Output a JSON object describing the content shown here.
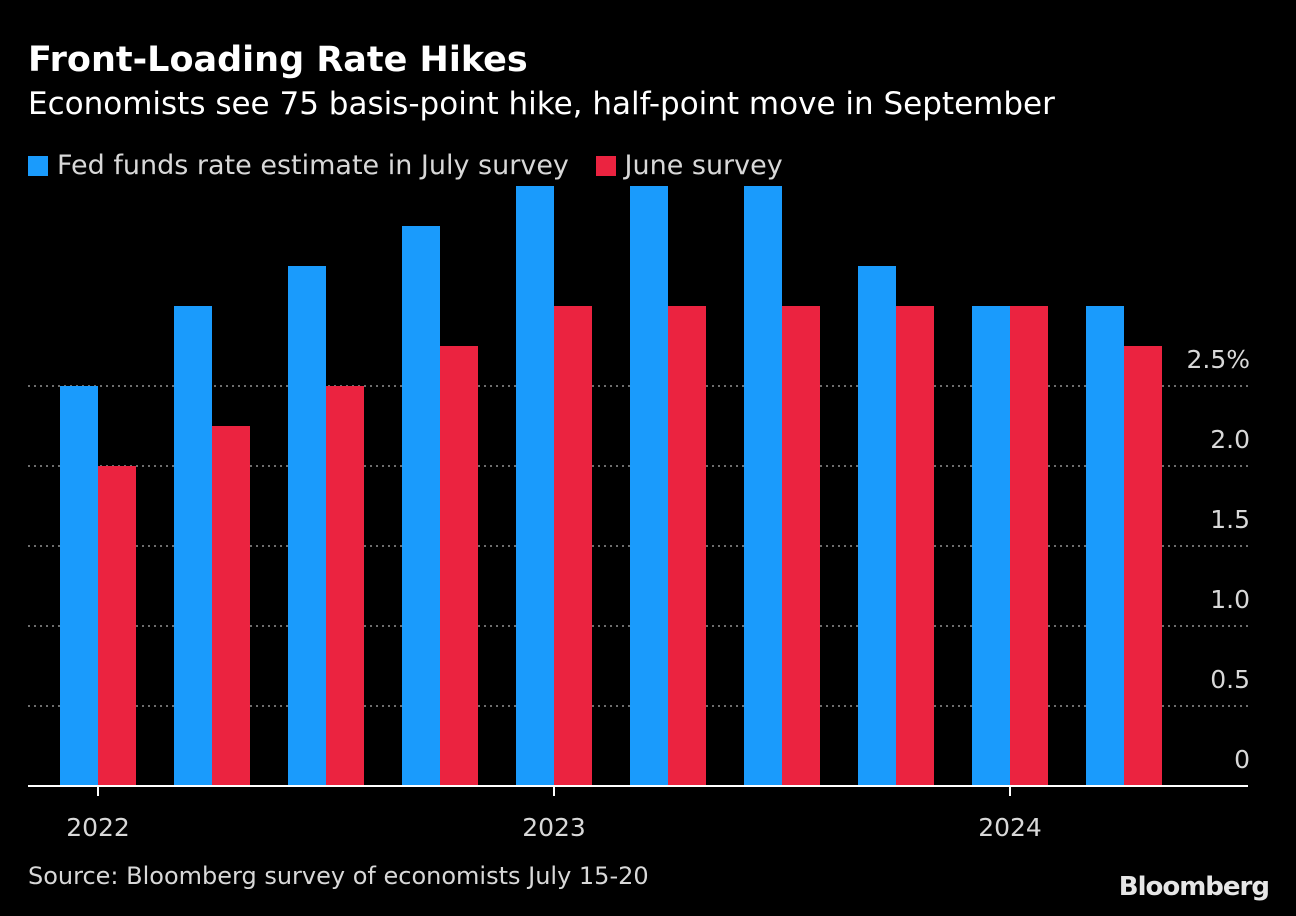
{
  "chart_data": {
    "type": "bar",
    "title": "Front-Loading Rate Hikes",
    "subtitle": "Economists see 75 basis-point hike, half-point move in September",
    "series": [
      {
        "name": "Fed funds rate estimate in July survey",
        "color": "#1a9bfc",
        "values": [
          2.5,
          3.0,
          3.25,
          3.5,
          3.75,
          3.75,
          3.75,
          3.25,
          3.0,
          3.0
        ]
      },
      {
        "name": "June survey",
        "color": "#eb2340",
        "values": [
          2.0,
          2.25,
          2.5,
          2.75,
          3.0,
          3.0,
          3.0,
          3.0,
          3.0,
          2.75
        ]
      }
    ],
    "x_tick_labels": [
      {
        "label": "2022",
        "index": 0.5
      },
      {
        "label": "2023",
        "index": 4.5
      },
      {
        "label": "2024",
        "index": 8.5
      }
    ],
    "y_ticks": [
      {
        "value": 0,
        "label": "0"
      },
      {
        "value": 0.5,
        "label": "0.5"
      },
      {
        "value": 1.0,
        "label": "1.0"
      },
      {
        "value": 1.5,
        "label": "1.5"
      },
      {
        "value": 2.0,
        "label": "2.0"
      },
      {
        "value": 2.5,
        "label": "2.5%"
      }
    ],
    "ylim": [
      0,
      3.75
    ],
    "y_axis_position": "right",
    "grid": true,
    "legend_position": "top-left"
  },
  "source": "Source: Bloomberg survey of economists July 15-20",
  "brand": "Bloomberg"
}
